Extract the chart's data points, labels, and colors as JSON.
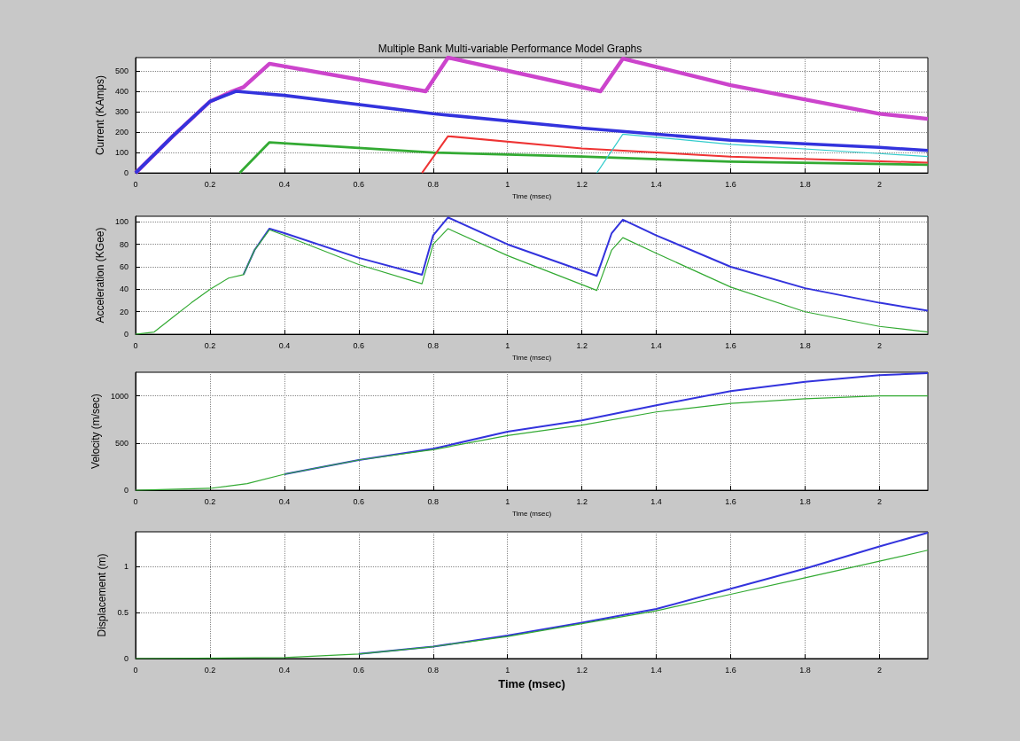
{
  "chart_data": [
    {
      "type": "line",
      "title": "Multiple Bank Multi-variable Performance Model Graphs",
      "xlabel": "Time (msec)",
      "ylabel": "Current (KAmps)",
      "xlim": [
        0,
        2.13
      ],
      "xticks": [
        0,
        0.2,
        0.4,
        0.6,
        0.8,
        1,
        1.2,
        1.4,
        1.6,
        1.8,
        2
      ],
      "ylim": [
        0,
        565
      ],
      "yticks": [
        0,
        100,
        200,
        300,
        400,
        500
      ],
      "grid": true,
      "series": [
        {
          "color": "#cc44cc",
          "x": [
            0,
            0.1,
            0.2,
            0.26,
            0.29,
            0.36,
            0.78,
            0.84,
            1.25,
            1.31,
            1.6,
            2.0,
            2.13
          ],
          "values": [
            0,
            180,
            350,
            400,
            420,
            535,
            400,
            565,
            400,
            560,
            430,
            290,
            265
          ]
        },
        {
          "color": "#3333dd",
          "x": [
            0,
            0.1,
            0.2,
            0.27,
            0.4,
            0.8,
            1.2,
            1.6,
            2.0,
            2.13
          ],
          "values": [
            0,
            180,
            350,
            400,
            380,
            290,
            220,
            160,
            125,
            110
          ]
        },
        {
          "color": "#33aa33",
          "x": [
            0.28,
            0.36,
            0.8,
            1.2,
            1.6,
            2.13
          ],
          "values": [
            0,
            150,
            100,
            80,
            55,
            40
          ]
        },
        {
          "color": "#ee3333",
          "x": [
            0.77,
            0.84,
            1.2,
            1.6,
            2.13
          ],
          "values": [
            0,
            180,
            120,
            80,
            50
          ]
        },
        {
          "color": "#33cccc",
          "x": [
            1.24,
            1.31,
            1.6,
            2.0,
            2.13
          ],
          "values": [
            0,
            190,
            140,
            95,
            80
          ]
        }
      ]
    },
    {
      "type": "line",
      "xlabel": "Time (msec)",
      "ylabel": "Acceleration (KGee)",
      "xlim": [
        0,
        2.13
      ],
      "xticks": [
        0,
        0.2,
        0.4,
        0.6,
        0.8,
        1,
        1.2,
        1.4,
        1.6,
        1.8,
        2
      ],
      "ylim": [
        0,
        105
      ],
      "yticks": [
        0,
        20,
        40,
        60,
        80,
        100
      ],
      "grid": true,
      "series": [
        {
          "color": "#3333dd",
          "x": [
            0.29,
            0.32,
            0.36,
            0.4,
            0.6,
            0.77,
            0.8,
            0.84,
            1.0,
            1.24,
            1.28,
            1.31,
            1.4,
            1.6,
            1.8,
            2.0,
            2.13
          ],
          "values": [
            53,
            75,
            94,
            90,
            68,
            53,
            88,
            104,
            80,
            52,
            90,
            102,
            88,
            60,
            41,
            28,
            21
          ]
        },
        {
          "color": "#33aa33",
          "x": [
            0,
            0.05,
            0.1,
            0.15,
            0.2,
            0.25,
            0.29,
            0.32,
            0.36,
            0.4,
            0.6,
            0.77,
            0.8,
            0.84,
            1.0,
            1.24,
            1.28,
            1.31,
            1.4,
            1.6,
            1.8,
            2.0,
            2.13
          ],
          "values": [
            0,
            2,
            15,
            28,
            40,
            50,
            53,
            75,
            93,
            88,
            62,
            45,
            80,
            94,
            70,
            39,
            75,
            86,
            72,
            42,
            20,
            7,
            2
          ]
        }
      ]
    },
    {
      "type": "line",
      "xlabel": "Time (msec)",
      "ylabel": "Velocity (m/sec)",
      "xlim": [
        0,
        2.13
      ],
      "xticks": [
        0,
        0.2,
        0.4,
        0.6,
        0.8,
        1,
        1.2,
        1.4,
        1.6,
        1.8,
        2
      ],
      "ylim": [
        0,
        1250
      ],
      "yticks": [
        0,
        500,
        1000
      ],
      "grid": true,
      "series": [
        {
          "color": "#3333dd",
          "x": [
            0.4,
            0.6,
            0.8,
            1.0,
            1.2,
            1.4,
            1.6,
            1.8,
            2.0,
            2.13
          ],
          "values": [
            170,
            320,
            440,
            620,
            740,
            900,
            1050,
            1150,
            1220,
            1240
          ]
        },
        {
          "color": "#33aa33",
          "x": [
            0,
            0.2,
            0.3,
            0.4,
            0.6,
            0.8,
            1.0,
            1.2,
            1.4,
            1.6,
            1.8,
            2.0,
            2.13
          ],
          "values": [
            0,
            20,
            70,
            170,
            320,
            430,
            580,
            690,
            830,
            920,
            970,
            1000,
            1000
          ]
        }
      ]
    },
    {
      "type": "line",
      "xlabel": "Time (msec)",
      "ylabel": "Displacement (m)",
      "xlim": [
        0,
        2.13
      ],
      "xticks": [
        0,
        0.2,
        0.4,
        0.6,
        0.8,
        1,
        1.2,
        1.4,
        1.6,
        1.8,
        2
      ],
      "ylim": [
        0,
        1.38
      ],
      "yticks": [
        0,
        0.5,
        1
      ],
      "grid": true,
      "series": [
        {
          "color": "#3333dd",
          "x": [
            0.6,
            0.8,
            1.0,
            1.2,
            1.4,
            1.6,
            1.8,
            2.0,
            2.13
          ],
          "values": [
            0.05,
            0.13,
            0.25,
            0.39,
            0.54,
            0.76,
            0.98,
            1.22,
            1.37
          ]
        },
        {
          "color": "#33aa33",
          "x": [
            0,
            0.4,
            0.6,
            0.8,
            1.0,
            1.2,
            1.4,
            1.6,
            1.8,
            2.0,
            2.13
          ],
          "values": [
            0,
            0.01,
            0.05,
            0.13,
            0.24,
            0.38,
            0.52,
            0.7,
            0.88,
            1.06,
            1.18
          ]
        }
      ]
    }
  ]
}
